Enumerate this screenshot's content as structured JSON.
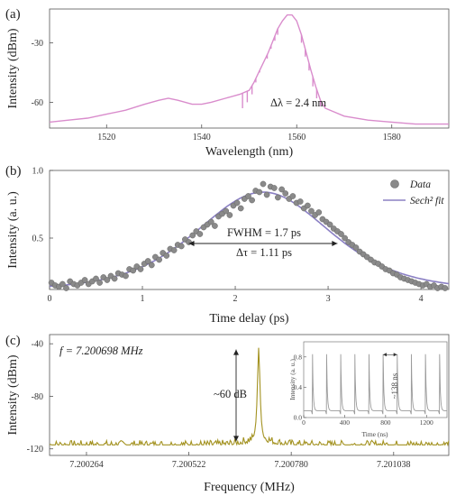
{
  "chart_data": [
    {
      "type": "line",
      "panel_label": "(a)",
      "xlabel": "Wavelength (nm)",
      "ylabel": "Intensity (dBm)",
      "xlim": [
        1508,
        1592
      ],
      "ylim": [
        -73,
        -13
      ],
      "x_ticks": [
        1520,
        1540,
        1560,
        1580
      ],
      "y_ticks": [
        -30,
        -60
      ],
      "annotation": "Δλ = 2.4 nm",
      "color": "#d98ccc",
      "series": [
        {
          "x": [
            1508,
            1512,
            1516,
            1520,
            1524,
            1528,
            1531,
            1533,
            1535,
            1538,
            1540,
            1542,
            1545,
            1548,
            1550,
            1551,
            1552,
            1553,
            1554,
            1555,
            1556,
            1557,
            1558,
            1559,
            1560,
            1561,
            1562,
            1563,
            1564,
            1565,
            1566,
            1568,
            1570,
            1575,
            1580,
            1585,
            1592
          ],
          "y": [
            -70,
            -69,
            -68,
            -66,
            -64,
            -61,
            -59,
            -58,
            -59,
            -61,
            -61,
            -60,
            -58,
            -56,
            -54,
            -50,
            -45,
            -40,
            -35,
            -29,
            -23,
            -19,
            -16,
            -16,
            -19,
            -26,
            -35,
            -44,
            -52,
            -59,
            -63,
            -65,
            -67,
            -69,
            -70,
            -71,
            -71
          ]
        }
      ],
      "spikes": [
        {
          "x": 1548.6,
          "y": -63
        },
        {
          "x": 1549.6,
          "y": -60
        },
        {
          "x": 1550.6,
          "y": -56
        },
        {
          "x": 1551.4,
          "y": -50
        },
        {
          "x": 1552.2,
          "y": -45
        },
        {
          "x": 1553.0,
          "y": -40
        },
        {
          "x": 1553.8,
          "y": -38
        },
        {
          "x": 1554.6,
          "y": -33
        },
        {
          "x": 1555.4,
          "y": -29
        },
        {
          "x": 1556.0,
          "y": -26
        },
        {
          "x": 1561.0,
          "y": -30
        },
        {
          "x": 1561.8,
          "y": -37
        },
        {
          "x": 1562.6,
          "y": -44
        },
        {
          "x": 1563.4,
          "y": -52
        },
        {
          "x": 1564.2,
          "y": -58
        },
        {
          "x": 1565.0,
          "y": -62
        }
      ]
    },
    {
      "type": "scatter",
      "panel_label": "(b)",
      "xlabel": "Time delay (ps)",
      "ylabel": "Intensity (a. u.)",
      "xlim": [
        0,
        4.3
      ],
      "ylim": [
        0.12,
        1.0
      ],
      "x_ticks": [
        0,
        1,
        2,
        3,
        4
      ],
      "y_ticks": [
        1.0,
        0.5
      ],
      "y_tick_labels": [
        "1.0",
        "0.5"
      ],
      "legend": [
        "Data",
        "Sech² fit"
      ],
      "legend_position": "top-right",
      "annotation_fwhm": "FWHM = 1.7 ps",
      "annotation_tau": "Δτ = 1.11 ps",
      "arrow_x": [
        1.5,
        3.1
      ],
      "arrow_y": 0.46,
      "fit_center": 2.3,
      "fit_amplitude": 0.72,
      "fit_offset": 0.12,
      "fit_width": 0.96,
      "fit_color": "#8b80c4",
      "data_color": "#8a8a8a",
      "x": [
        0.02,
        0.06,
        0.1,
        0.14,
        0.18,
        0.22,
        0.26,
        0.3,
        0.34,
        0.38,
        0.42,
        0.46,
        0.5,
        0.54,
        0.58,
        0.62,
        0.66,
        0.7,
        0.74,
        0.78,
        0.82,
        0.86,
        0.9,
        0.94,
        0.98,
        1.02,
        1.06,
        1.1,
        1.14,
        1.18,
        1.22,
        1.26,
        1.3,
        1.34,
        1.38,
        1.42,
        1.46,
        1.5,
        1.54,
        1.58,
        1.62,
        1.66,
        1.7,
        1.74,
        1.78,
        1.82,
        1.86,
        1.9,
        1.94,
        1.98,
        2.02,
        2.06,
        2.1,
        2.14,
        2.18,
        2.22,
        2.26,
        2.3,
        2.34,
        2.38,
        2.42,
        2.46,
        2.5,
        2.54,
        2.58,
        2.62,
        2.66,
        2.7,
        2.74,
        2.78,
        2.82,
        2.86,
        2.9,
        2.94,
        2.98,
        3.02,
        3.06,
        3.1,
        3.14,
        3.18,
        3.22,
        3.26,
        3.3,
        3.34,
        3.38,
        3.42,
        3.46,
        3.5,
        3.54,
        3.58,
        3.62,
        3.66,
        3.7,
        3.74,
        3.78,
        3.82,
        3.86,
        3.9,
        3.94,
        3.98,
        4.02,
        4.06,
        4.1,
        4.14,
        4.18,
        4.22,
        4.26
      ],
      "y": [
        0.17,
        0.15,
        0.14,
        0.16,
        0.13,
        0.18,
        0.16,
        0.15,
        0.17,
        0.19,
        0.16,
        0.18,
        0.2,
        0.17,
        0.21,
        0.19,
        0.22,
        0.2,
        0.24,
        0.23,
        0.22,
        0.27,
        0.26,
        0.29,
        0.27,
        0.31,
        0.33,
        0.3,
        0.36,
        0.34,
        0.39,
        0.37,
        0.42,
        0.41,
        0.45,
        0.44,
        0.49,
        0.47,
        0.52,
        0.55,
        0.53,
        0.58,
        0.6,
        0.62,
        0.59,
        0.66,
        0.68,
        0.7,
        0.67,
        0.74,
        0.76,
        0.72,
        0.79,
        0.81,
        0.78,
        0.85,
        0.84,
        0.9,
        0.82,
        0.88,
        0.87,
        0.8,
        0.86,
        0.83,
        0.79,
        0.81,
        0.76,
        0.77,
        0.72,
        0.74,
        0.7,
        0.67,
        0.69,
        0.64,
        0.62,
        0.6,
        0.57,
        0.55,
        0.53,
        0.5,
        0.47,
        0.45,
        0.43,
        0.4,
        0.38,
        0.36,
        0.34,
        0.32,
        0.31,
        0.29,
        0.27,
        0.26,
        0.24,
        0.23,
        0.21,
        0.2,
        0.19,
        0.18,
        0.17,
        0.16,
        0.15,
        0.16,
        0.14,
        0.15,
        0.13,
        0.14,
        0.13
      ]
    },
    {
      "type": "line",
      "panel_label": "(c)",
      "xlabel": "Frequency (MHz)",
      "ylabel": "Intensity (dBm)",
      "xlim": [
        7.200171,
        7.201177
      ],
      "ylim": [
        -125,
        -33
      ],
      "x_ticks": [
        7.200264,
        7.200522,
        7.20078,
        7.201038
      ],
      "x_tick_labels": [
        "7.200264",
        "7.200522",
        "7.200780",
        "7.201038"
      ],
      "y_ticks": [
        -40,
        -80,
        -120
      ],
      "f_label": "f = 7.200698 MHz",
      "snr_label": "~60 dB",
      "peak_x": 7.200698,
      "peak_y": -43,
      "noise_floor": -117,
      "color": "#a39220",
      "inset": {
        "xlabel": "Time (ns)",
        "ylabel": "Intensity (a. u.)",
        "xlim": [
          0,
          1400
        ],
        "ylim": [
          0,
          1.0
        ],
        "x_ticks": [
          0,
          400,
          800,
          1200
        ],
        "y_ticks": [
          0.0,
          0.4,
          0.8
        ],
        "y_tick_labels": [
          "0.0",
          "0.4",
          "0.8"
        ],
        "period_label": "~138 ns",
        "pulse_times": [
          85,
          223,
          361,
          499,
          637,
          775,
          913,
          1051,
          1189,
          1327
        ]
      }
    }
  ]
}
